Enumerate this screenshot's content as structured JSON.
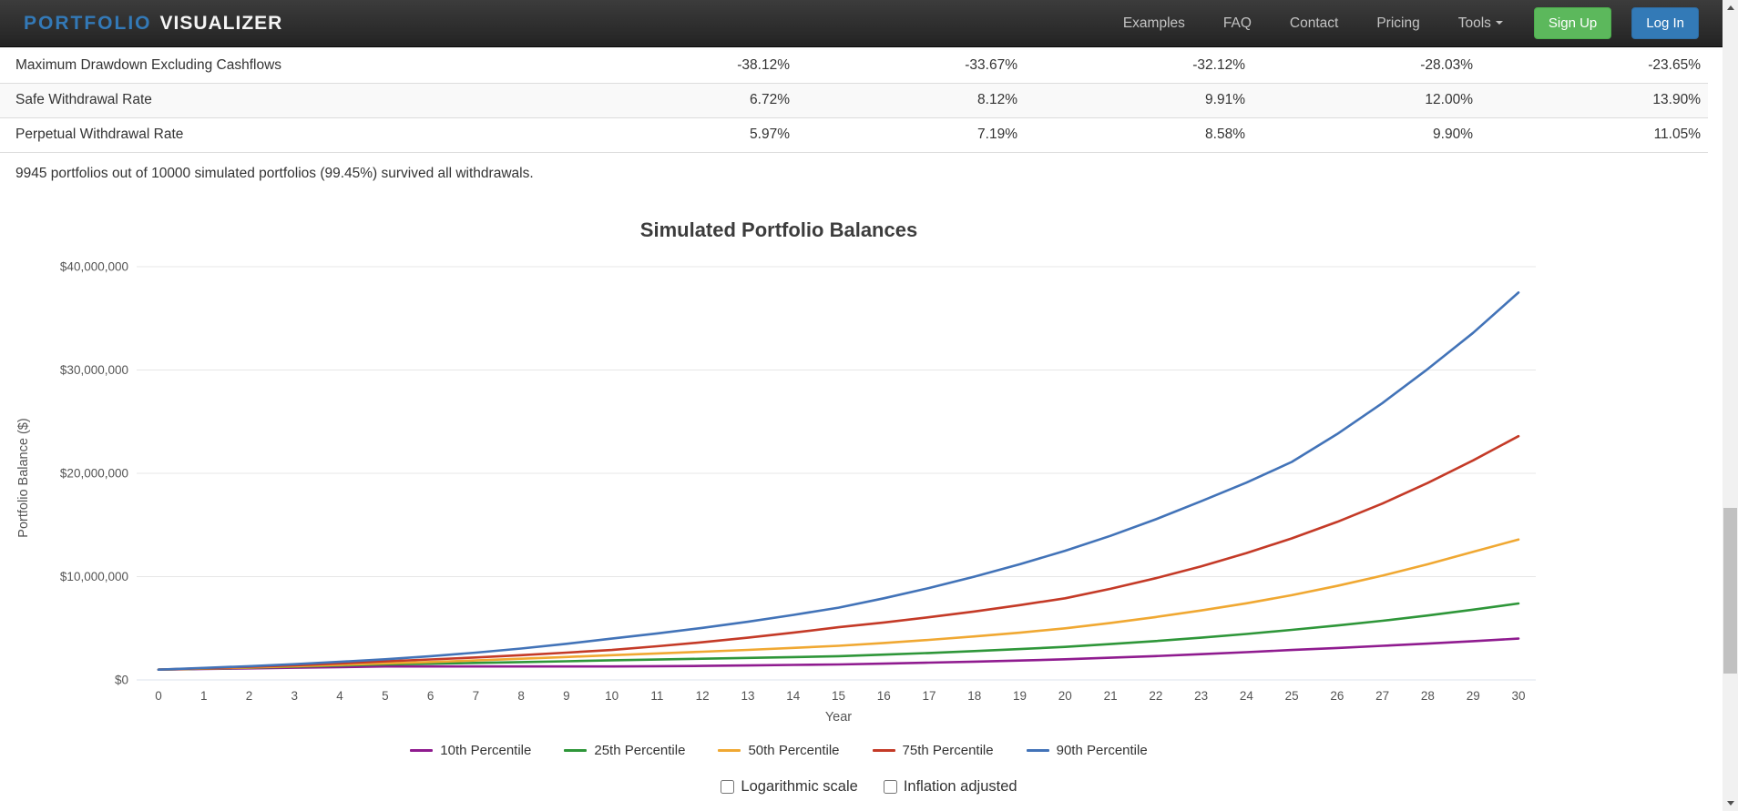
{
  "navbar": {
    "brand_primary": "PORTFOLIO",
    "brand_secondary": "VISUALIZER",
    "links": [
      {
        "label": "Examples",
        "caret": false
      },
      {
        "label": "FAQ",
        "caret": false
      },
      {
        "label": "Contact",
        "caret": false
      },
      {
        "label": "Pricing",
        "caret": false
      },
      {
        "label": "Tools",
        "caret": true
      }
    ],
    "signup_label": "Sign Up",
    "login_label": "Log In",
    "colors": {
      "bar_bg": "#232323",
      "brand_blue": "#3379b7",
      "signup_green": "#5cb85c",
      "login_blue": "#337ab7"
    }
  },
  "results_table": {
    "rows": [
      {
        "label": "Maximum Drawdown Excluding Cashflows",
        "values": [
          "-38.12%",
          "-33.67%",
          "-32.12%",
          "-28.03%",
          "-23.65%"
        ]
      },
      {
        "label": "Safe Withdrawal Rate",
        "values": [
          "6.72%",
          "8.12%",
          "9.91%",
          "12.00%",
          "13.90%"
        ]
      },
      {
        "label": "Perpetual Withdrawal Rate",
        "values": [
          "5.97%",
          "7.19%",
          "8.58%",
          "9.90%",
          "11.05%"
        ]
      }
    ],
    "striped_row_bg": "#f9f9f9"
  },
  "survival_note": "9945 portfolios out of 10000 simulated portfolios (99.45%) survived all withdrawals.",
  "chart_data": {
    "type": "line",
    "title": "Simulated Portfolio Balances",
    "xlabel": "Year",
    "ylabel": "Portfolio Balance ($)",
    "x": [
      0,
      1,
      2,
      3,
      4,
      5,
      6,
      7,
      8,
      9,
      10,
      11,
      12,
      13,
      14,
      15,
      16,
      17,
      18,
      19,
      20,
      21,
      22,
      23,
      24,
      25,
      26,
      27,
      28,
      29,
      30
    ],
    "xlim": [
      0,
      30
    ],
    "ylim_millions": [
      0,
      42
    ],
    "y_unit": "millions_usd",
    "grid": true,
    "legend_position": "bottom",
    "y_ticks": [
      {
        "label": "$0",
        "value_millions": 0
      },
      {
        "label": "$10,000,000",
        "value_millions": 10
      },
      {
        "label": "$20,000,000",
        "value_millions": 20
      },
      {
        "label": "$30,000,000",
        "value_millions": 30
      },
      {
        "label": "$40,000,000",
        "value_millions": 40
      }
    ],
    "series": [
      {
        "name": "10th Percentile",
        "color": "#8f1b8f",
        "values_millions": [
          1.0,
          1.06,
          1.12,
          1.18,
          1.24,
          1.3,
          1.3,
          1.3,
          1.3,
          1.3,
          1.3,
          1.33,
          1.36,
          1.4,
          1.45,
          1.5,
          1.58,
          1.67,
          1.77,
          1.88,
          2.0,
          2.15,
          2.31,
          2.49,
          2.69,
          2.9,
          3.09,
          3.3,
          3.52,
          3.75,
          4.0
        ]
      },
      {
        "name": "25th Percentile",
        "color": "#2e9639",
        "values_millions": [
          1.0,
          1.09,
          1.18,
          1.28,
          1.39,
          1.5,
          1.57,
          1.65,
          1.73,
          1.81,
          1.9,
          1.97,
          2.05,
          2.13,
          2.21,
          2.3,
          2.45,
          2.61,
          2.79,
          2.99,
          3.2,
          3.47,
          3.76,
          4.09,
          4.45,
          4.85,
          5.27,
          5.73,
          6.24,
          6.8,
          7.4
        ]
      },
      {
        "name": "50th Percentile",
        "color": "#f0a832",
        "values_millions": [
          1.0,
          1.1,
          1.21,
          1.33,
          1.46,
          1.6,
          1.74,
          1.89,
          2.05,
          2.22,
          2.4,
          2.56,
          2.73,
          2.91,
          3.1,
          3.3,
          3.58,
          3.88,
          4.21,
          4.57,
          5.0,
          5.52,
          6.09,
          6.72,
          7.42,
          8.2,
          9.1,
          10.1,
          11.2,
          12.4,
          13.6
        ]
      },
      {
        "name": "75th Percentile",
        "color": "#c43a27",
        "values_millions": [
          1.0,
          1.13,
          1.27,
          1.42,
          1.6,
          1.8,
          1.98,
          2.18,
          2.4,
          2.64,
          2.9,
          3.26,
          3.65,
          4.09,
          4.57,
          5.1,
          5.56,
          6.07,
          6.63,
          7.24,
          7.9,
          8.82,
          9.85,
          11.0,
          12.28,
          13.7,
          15.3,
          17.08,
          19.07,
          21.25,
          23.6
        ]
      },
      {
        "name": "90th Percentile",
        "color": "#4273b8",
        "values_millions": [
          1.0,
          1.16,
          1.33,
          1.52,
          1.75,
          2.0,
          2.3,
          2.64,
          3.04,
          3.5,
          4.0,
          4.5,
          5.04,
          5.63,
          6.29,
          7.0,
          7.9,
          8.9,
          10.0,
          11.2,
          12.5,
          13.95,
          15.55,
          17.3,
          19.1,
          21.1,
          23.8,
          26.8,
          30.1,
          33.6,
          37.5
        ]
      }
    ]
  },
  "controls": {
    "log_scale_label": "Logarithmic scale",
    "log_scale_checked": false,
    "inflation_label": "Inflation adjusted",
    "inflation_checked": false
  }
}
